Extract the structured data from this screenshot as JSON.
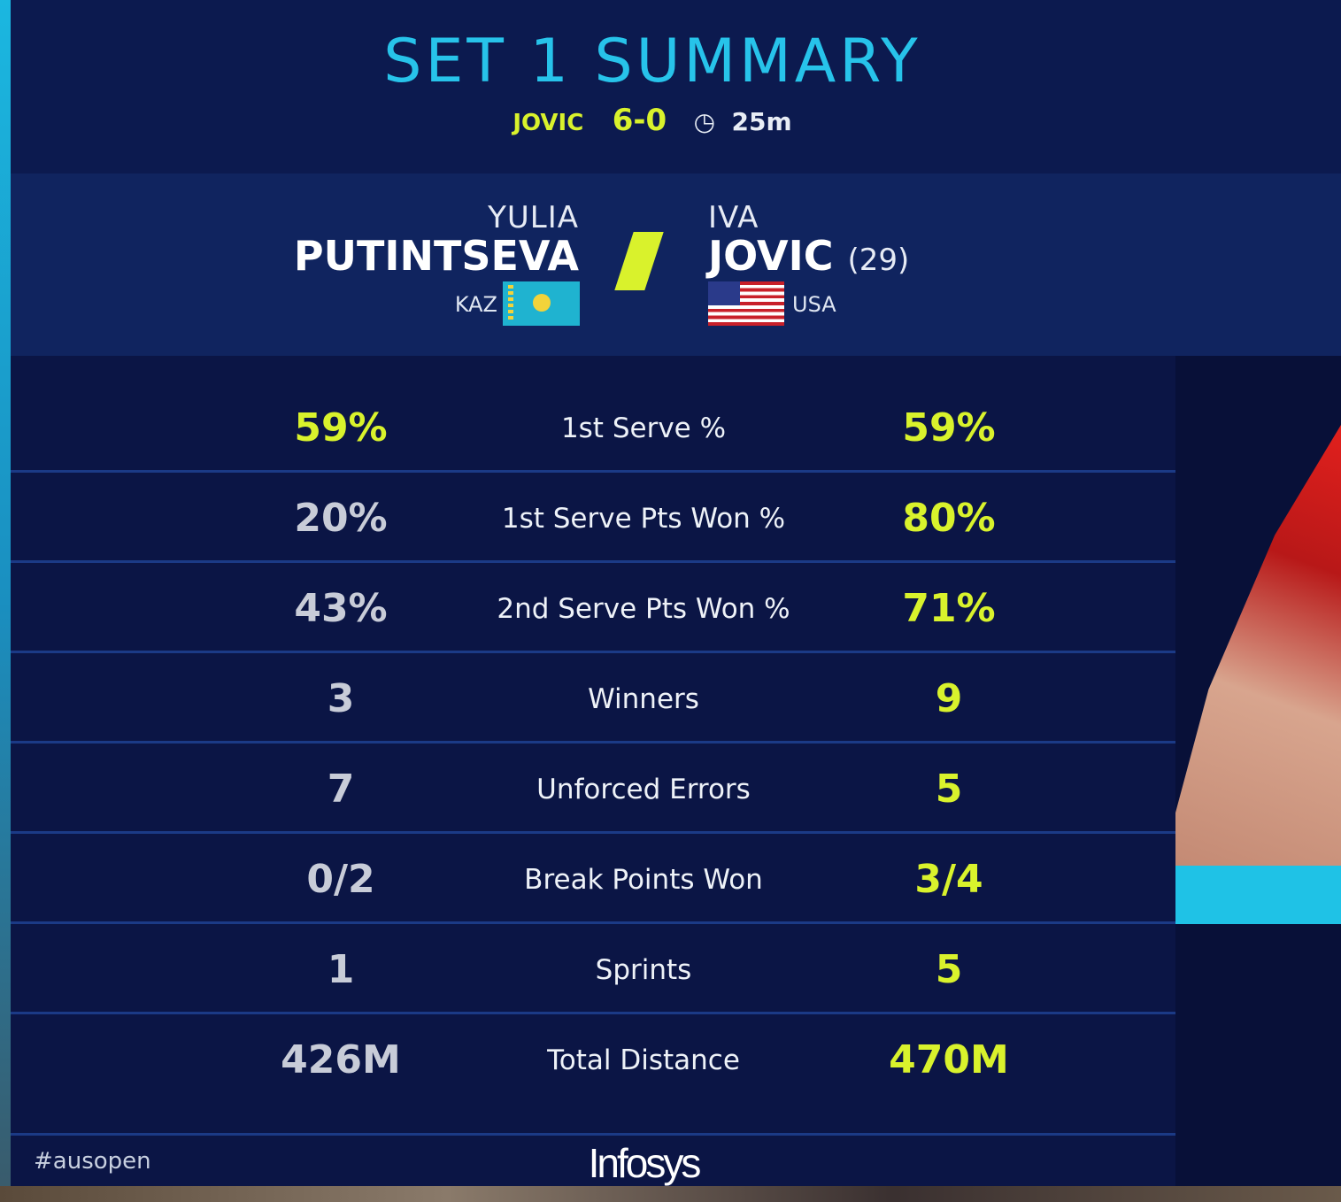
{
  "title": "SET 1 SUMMARY",
  "summary": {
    "winner": "JOVIC",
    "score": "6-0",
    "clock_icon": "clock-icon",
    "duration": "25m"
  },
  "players": {
    "left": {
      "first": "YULIA",
      "last": "PUTINTSEVA",
      "country": "KAZ",
      "flag": "kazakhstan-flag"
    },
    "right": {
      "first": "IVA",
      "last": "JOVIC",
      "seed": "(29)",
      "country": "USA",
      "flag": "usa-flag"
    }
  },
  "stats": [
    {
      "label": "1st Serve %",
      "left": "59%",
      "right": "59%",
      "left_highlight": true
    },
    {
      "label": "1st Serve Pts Won %",
      "left": "20%",
      "right": "80%",
      "left_highlight": false
    },
    {
      "label": "2nd Serve Pts Won %",
      "left": "43%",
      "right": "71%",
      "left_highlight": false
    },
    {
      "label": "Winners",
      "left": "3",
      "right": "9",
      "left_highlight": false
    },
    {
      "label": "Unforced Errors",
      "left": "7",
      "right": "5",
      "left_highlight": false
    },
    {
      "label": "Break Points Won",
      "left": "0/2",
      "right": "3/4",
      "left_highlight": false
    },
    {
      "label": "Sprints",
      "left": "1",
      "right": "5",
      "left_highlight": false
    },
    {
      "label": "Total Distance",
      "left": "426M",
      "right": "470M",
      "left_highlight": false
    }
  ],
  "footer": {
    "hashtag": "#ausopen",
    "sponsor": "Infosys"
  },
  "colors": {
    "accent": "#d9f22c",
    "title": "#27c3ea",
    "panel": "#0b1545"
  }
}
